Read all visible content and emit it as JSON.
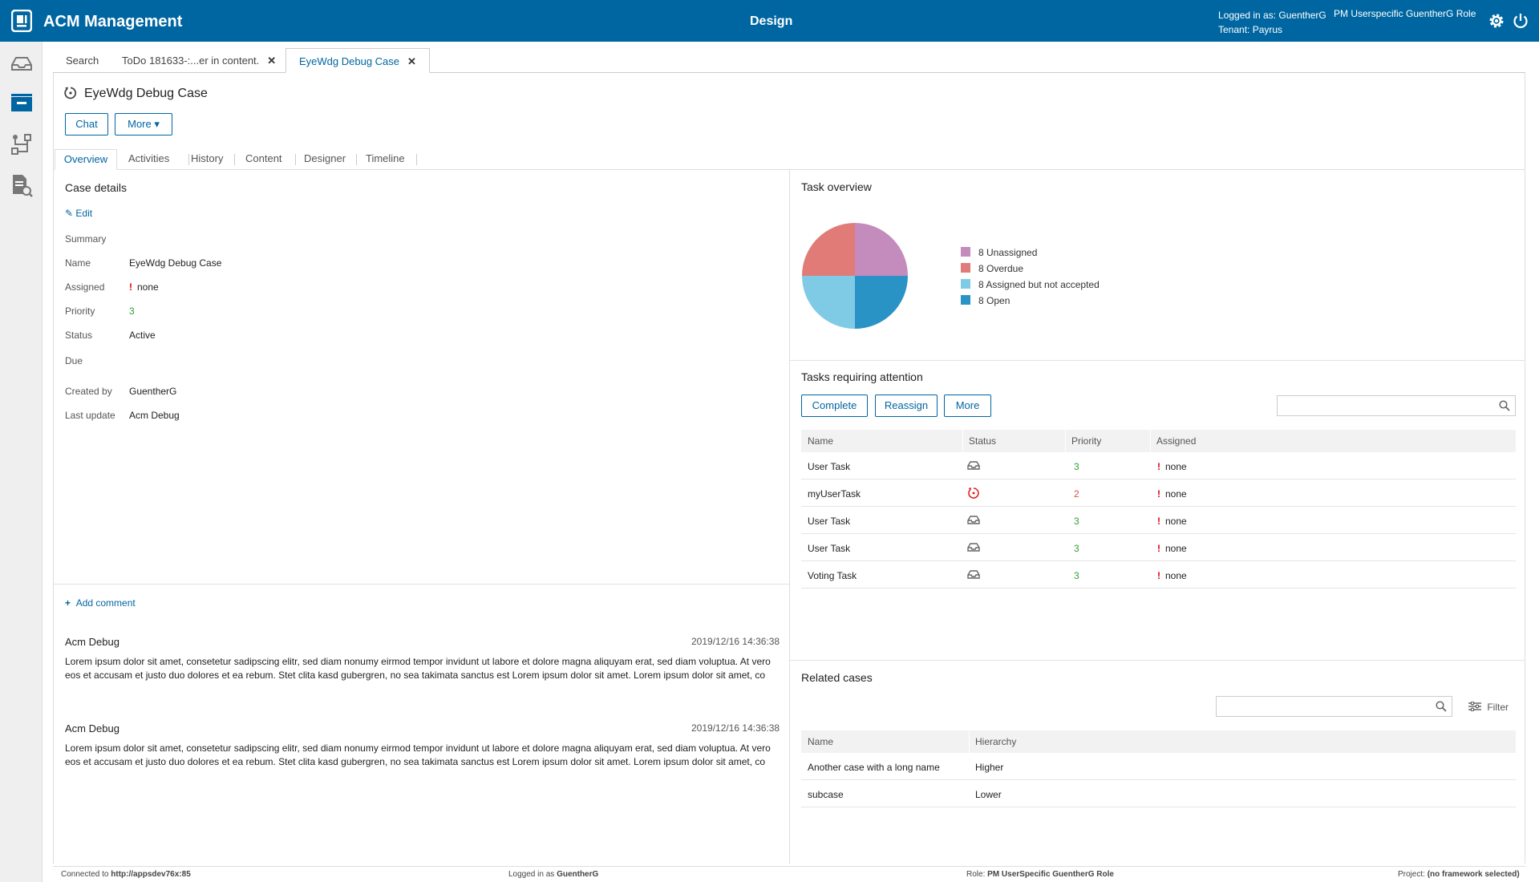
{
  "header": {
    "app_title": "ACM Management",
    "center_title": "Design",
    "logged_in_label": "Logged in as: GuentherG",
    "tenant_label": "Tenant: Payrus",
    "role_label": "PM Userspecific GuentherG Role",
    "bg_color": "#0066a1"
  },
  "nav": {
    "items": [
      {
        "icon": "inbox-icon"
      },
      {
        "icon": "cases-icon"
      },
      {
        "icon": "process-icon"
      },
      {
        "icon": "document-search-icon"
      }
    ]
  },
  "doc_tabs": [
    {
      "label": "Search"
    },
    {
      "label": "ToDo 181633-:...er in content."
    },
    {
      "label": "EyeWdg Debug Case"
    }
  ],
  "case": {
    "title": "EyeWdg Debug Case",
    "chat_label": "Chat",
    "more_label": "More"
  },
  "section_tabs": [
    {
      "label": "Overview"
    },
    {
      "label": "Activities"
    },
    {
      "label": "History"
    },
    {
      "label": "Content"
    },
    {
      "label": "Designer"
    },
    {
      "label": "Timeline"
    }
  ],
  "case_details": {
    "heading": "Case details",
    "edit_label": "Edit",
    "summary_label": "Summary",
    "name_label": "Name",
    "name_value": "EyeWdg Debug Case",
    "assigned_label": "Assigned",
    "assigned_value": "none",
    "priority_label": "Priority",
    "priority_value": "3",
    "status_label": "Status",
    "status_value": "Active",
    "due_label": "Due",
    "created_by_label": "Created by",
    "created_by_value": "GuentherG",
    "last_update_label": "Last update",
    "last_update_value": "Acm Debug"
  },
  "comments": {
    "add_label": "Add comment",
    "items": [
      {
        "author": "Acm Debug",
        "time": "2019/12/16 14:36:38",
        "text": "Lorem ipsum dolor sit amet, consetetur sadipscing elitr, sed diam nonumy eirmod tempor invidunt ut labore et dolore magna aliquyam erat, sed diam voluptua. At vero eos et accusam et justo duo dolores et ea rebum. Stet clita kasd gubergren, no sea takimata sanctus est Lorem ipsum dolor sit amet. Lorem ipsum dolor sit amet, co"
      },
      {
        "author": "Acm Debug",
        "time": "2019/12/16 14:36:38",
        "text": "Lorem ipsum dolor sit amet, consetetur sadipscing elitr, sed diam nonumy eirmod tempor invidunt ut labore et dolore magna aliquyam erat, sed diam voluptua. At vero eos et accusam et justo duo dolores et ea rebum. Stet clita kasd gubergren, no sea takimata sanctus est Lorem ipsum dolor sit amet. Lorem ipsum dolor sit amet, co"
      }
    ]
  },
  "task_overview": {
    "heading": "Task overview",
    "chart_data": {
      "type": "pie",
      "categories": [
        "8 Unassigned",
        "8 Overdue",
        "8 Assigned but not accepted",
        "8 Open"
      ],
      "values": [
        8,
        8,
        8,
        8
      ],
      "colors": [
        "#c48bbd",
        "#e07b78",
        "#7fcbe6",
        "#2a93c5"
      ]
    }
  },
  "tasks_attention": {
    "heading": "Tasks requiring attention",
    "complete_label": "Complete",
    "reassign_label": "Reassign",
    "more_label": "More",
    "columns": [
      "Name",
      "Status",
      "Priority",
      "Assigned"
    ],
    "rows": [
      {
        "name": "User Task",
        "status_icon": "inbox-icon",
        "priority": "3",
        "assigned": "none"
      },
      {
        "name": "myUserTask",
        "status_icon": "overdue-icon",
        "priority": "2",
        "assigned": "none"
      },
      {
        "name": "User Task",
        "status_icon": "inbox-icon",
        "priority": "3",
        "assigned": "none"
      },
      {
        "name": "User Task",
        "status_icon": "inbox-icon",
        "priority": "3",
        "assigned": "none"
      },
      {
        "name": "Voting Task",
        "status_icon": "inbox-icon",
        "priority": "3",
        "assigned": "none"
      }
    ]
  },
  "related_cases": {
    "heading": "Related cases",
    "filter_label": "Filter",
    "columns": [
      "Name",
      "Hierarchy"
    ],
    "rows": [
      {
        "name": "Another case with a long name",
        "hierarchy": "Higher"
      },
      {
        "name": "subcase",
        "hierarchy": "Lower"
      }
    ]
  },
  "statusbar": {
    "connected_label": "Connected to",
    "connected_value": "http://appsdev76x:85",
    "logged_label": "Logged in as",
    "logged_value": "GuentherG",
    "role_label": "Role:",
    "role_value": "PM UserSpecific GuentherG Role",
    "project_label": "Project:",
    "project_value": "(no framework selected)"
  }
}
